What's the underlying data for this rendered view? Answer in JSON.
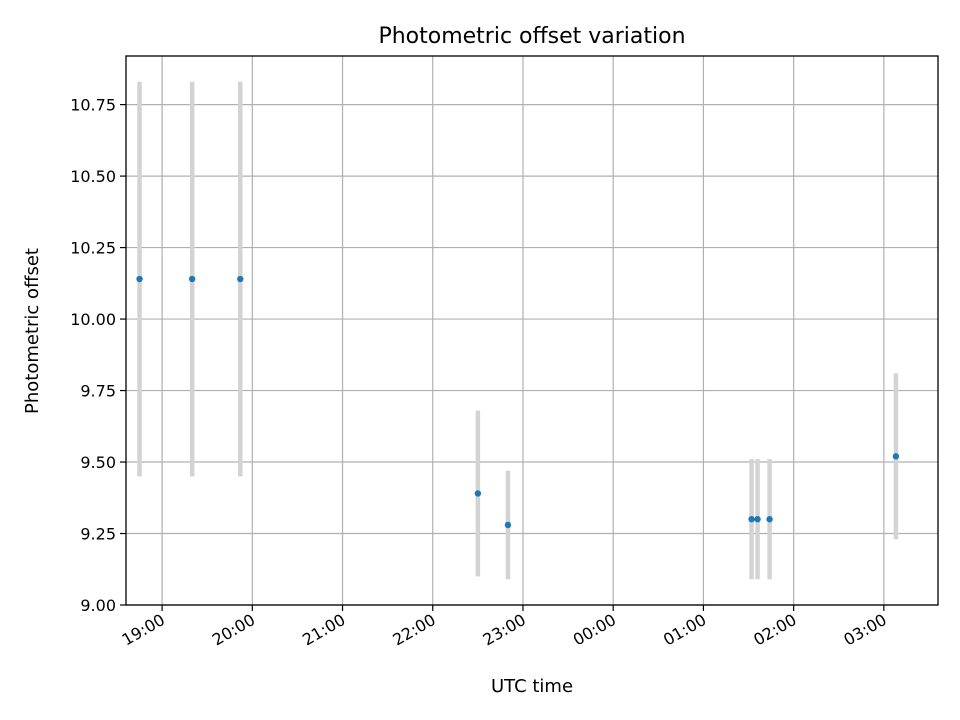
{
  "chart_data": {
    "type": "scatter",
    "title": "Photometric offset variation",
    "xlabel": "UTC time",
    "ylabel": "Photometric offset",
    "x_ticks": [
      "19:00",
      "20:00",
      "21:00",
      "22:00",
      "23:00",
      "00:00",
      "01:00",
      "02:00",
      "03:00"
    ],
    "y_ticks": [
      "9.00",
      "9.25",
      "9.50",
      "9.75",
      "10.00",
      "10.25",
      "10.50",
      "10.75"
    ],
    "xlim": [
      "18:36",
      "03:36"
    ],
    "ylim": [
      9.0,
      10.92
    ],
    "grid": true,
    "point_color": "#1f77b4",
    "errorbar_color": "#d3d3d3",
    "points": [
      {
        "t": "18:45",
        "y": 10.14,
        "err": 0.69
      },
      {
        "t": "19:20",
        "y": 10.14,
        "err": 0.69
      },
      {
        "t": "19:52",
        "y": 10.14,
        "err": 0.69
      },
      {
        "t": "22:30",
        "y": 9.39,
        "err": 0.29
      },
      {
        "t": "22:50",
        "y": 9.28,
        "err": 0.19
      },
      {
        "t": "01:32",
        "y": 9.3,
        "err": 0.21
      },
      {
        "t": "01:36",
        "y": 9.3,
        "err": 0.21
      },
      {
        "t": "01:44",
        "y": 9.3,
        "err": 0.21
      },
      {
        "t": "03:08",
        "y": 9.52,
        "err": 0.29
      }
    ]
  }
}
